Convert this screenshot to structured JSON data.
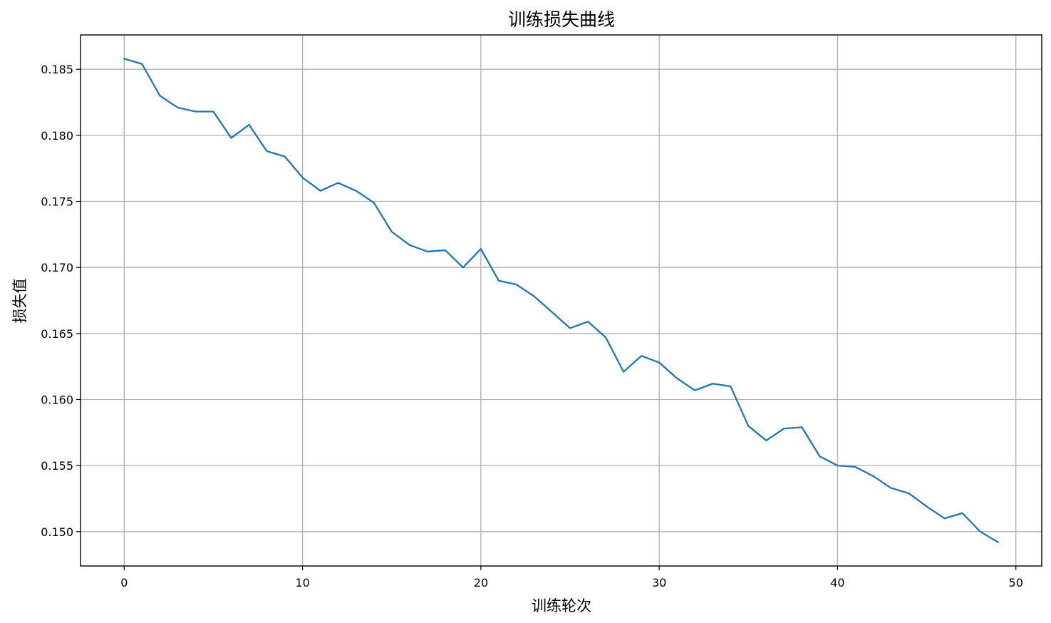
{
  "chart_data": {
    "type": "line",
    "title": "训练损失曲线",
    "xlabel": "训练轮次",
    "ylabel": "损失值",
    "xlim": [
      -2.45,
      51.45
    ],
    "ylim": [
      0.1474,
      0.1876
    ],
    "xticks": [
      0,
      10,
      20,
      30,
      40,
      50
    ],
    "yticks": [
      0.15,
      0.155,
      0.16,
      0.165,
      0.17,
      0.175,
      0.18,
      0.185
    ],
    "xtick_labels": [
      "0",
      "10",
      "20",
      "30",
      "40",
      "50"
    ],
    "ytick_labels": [
      "0.150",
      "0.155",
      "0.160",
      "0.165",
      "0.170",
      "0.175",
      "0.180",
      "0.185"
    ],
    "grid": true,
    "series": [
      {
        "color": "#1f77b4",
        "x": [
          0,
          1,
          2,
          3,
          4,
          5,
          6,
          7,
          8,
          9,
          10,
          11,
          12,
          13,
          14,
          15,
          16,
          17,
          18,
          19,
          20,
          21,
          22,
          23,
          24,
          25,
          26,
          27,
          28,
          29,
          30,
          31,
          32,
          33,
          34,
          35,
          36,
          37,
          38,
          39,
          40,
          41,
          42,
          43,
          44,
          45,
          46,
          47,
          48,
          49
        ],
        "y": [
          0.1858,
          0.1854,
          0.183,
          0.1821,
          0.1818,
          0.1818,
          0.1798,
          0.1808,
          0.1788,
          0.1784,
          0.1768,
          0.1758,
          0.1764,
          0.1758,
          0.1749,
          0.1727,
          0.1717,
          0.1712,
          0.1713,
          0.17,
          0.1714,
          0.169,
          0.1687,
          0.1678,
          0.1666,
          0.1654,
          0.1659,
          0.1647,
          0.1621,
          0.1633,
          0.1628,
          0.1616,
          0.1607,
          0.1612,
          0.161,
          0.158,
          0.1569,
          0.1578,
          0.1579,
          0.1557,
          0.155,
          0.1549,
          0.1542,
          0.1533,
          0.1529,
          0.1519,
          0.151,
          0.1514,
          0.15,
          0.1492
        ]
      }
    ]
  }
}
